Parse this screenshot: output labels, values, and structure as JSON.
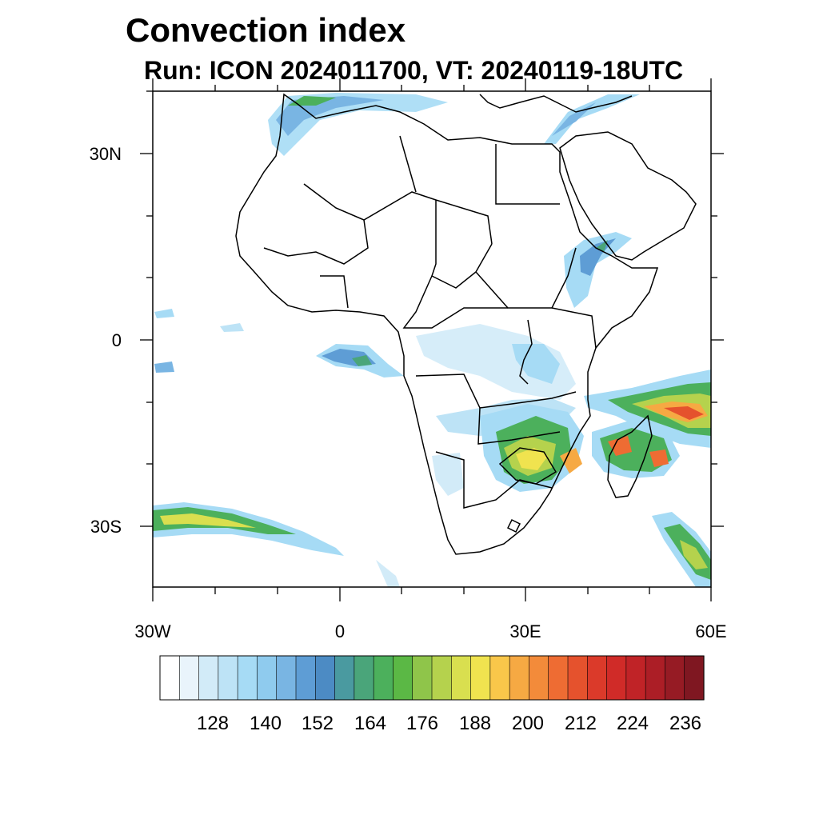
{
  "title": "Convection index",
  "subtitle": "Run: ICON 2024011700,  VT: 20240119-18UTC",
  "axes": {
    "lat_labels": [
      "30N",
      "0",
      "30S"
    ],
    "lon_labels": [
      "30W",
      "0",
      "30E",
      "60E"
    ]
  },
  "colorbar": {
    "colors": [
      "#ffffff",
      "#e9f4fb",
      "#d2ebf8",
      "#bde3f6",
      "#a6dbf5",
      "#8fcbee",
      "#79b5e3",
      "#5e9dd5",
      "#4c8bc4",
      "#4a9aa0",
      "#4aa57a",
      "#4cb05c",
      "#5bb845",
      "#8fc54a",
      "#b5d24d",
      "#d9df4f",
      "#f0e34f",
      "#f9c74a",
      "#f6a943",
      "#f38b3a",
      "#ee6c33",
      "#e5522d",
      "#db3a2a",
      "#d02b28",
      "#c02327",
      "#ac1e26",
      "#961b24",
      "#7f1721"
    ],
    "labels": [
      "128",
      "140",
      "152",
      "164",
      "176",
      "188",
      "200",
      "212",
      "224",
      "236"
    ]
  }
}
